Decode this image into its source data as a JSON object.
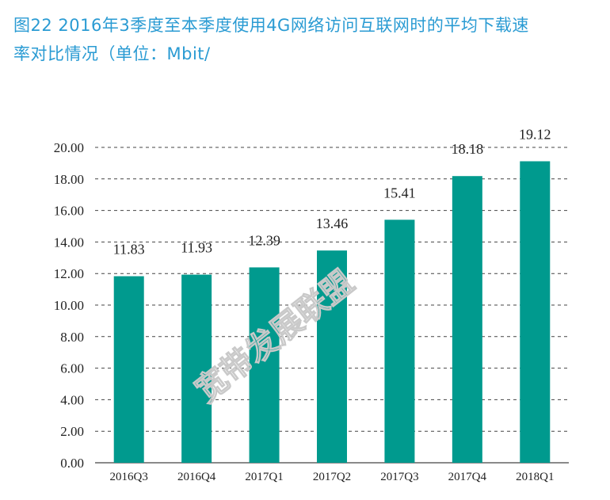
{
  "title_line1": "图22  2016年3季度至本季度使用4G网络访问互联网时的平均下载速",
  "title_line2": "率对比情况（单位：Mbit/",
  "watermark": "宽带发展联盟",
  "colors": {
    "bar": "#009a8e",
    "title": "#2a9bd3",
    "grid": "#444444"
  },
  "chart_data": {
    "type": "bar",
    "categories": [
      "2016Q3",
      "2016Q4",
      "2017Q1",
      "2017Q2",
      "2017Q3",
      "2017Q4",
      "2018Q1"
    ],
    "values": [
      11.83,
      11.93,
      12.39,
      13.46,
      15.41,
      18.18,
      19.12
    ],
    "data_labels": [
      "11.83",
      "11.93",
      "12.39",
      "13.46",
      "15.41",
      "18.18",
      "19.12"
    ],
    "yticks": [
      "0.00",
      "2.00",
      "4.00",
      "6.00",
      "8.00",
      "10.00",
      "12.00",
      "14.00",
      "16.00",
      "18.00",
      "20.00"
    ],
    "ylim": [
      0,
      20
    ],
    "grid": true,
    "title": "",
    "xlabel": "",
    "ylabel": ""
  }
}
